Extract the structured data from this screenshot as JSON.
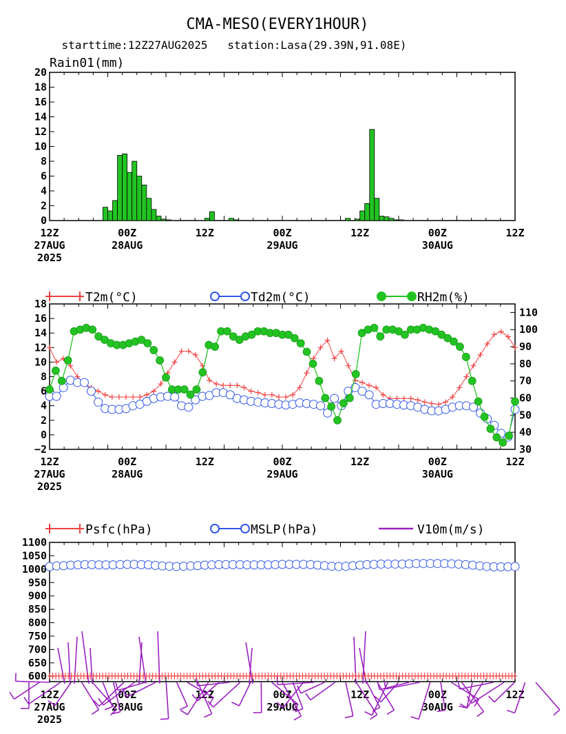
{
  "header": {
    "title": "CMA-MESO(EVERY1HOUR)",
    "subtitle": "starttime:12Z27AUG2025   station:Lasa(29.39N,91.08E)"
  },
  "x_axis": {
    "ticks": [
      {
        "l1": "12Z",
        "l2": "27AUG",
        "l3": "2025"
      },
      {
        "l1": "00Z",
        "l2": "28AUG",
        "l3": ""
      },
      {
        "l1": "12Z",
        "l2": "",
        "l3": ""
      },
      {
        "l1": "00Z",
        "l2": "29AUG",
        "l3": ""
      },
      {
        "l1": "12Z",
        "l2": "",
        "l3": ""
      },
      {
        "l1": "00Z",
        "l2": "30AUG",
        "l3": ""
      },
      {
        "l1": "12Z",
        "l2": "",
        "l3": ""
      }
    ]
  },
  "colors": {
    "rain": "#22c322",
    "t2m": "#f04040",
    "td2m": "#2f55e6",
    "rh2m": "#22c322",
    "psfc": "#f04040",
    "mslp": "#2f55e6",
    "wind": "#9b1fbf"
  },
  "chart_data": [
    {
      "type": "bar",
      "title": "Rain01(mm)",
      "x_unit": "hours since 12Z27AUG2025",
      "ylim": [
        0,
        20
      ],
      "yticks": [
        0,
        2,
        4,
        6,
        8,
        10,
        12,
        14,
        16,
        18,
        20
      ],
      "values": [
        0,
        0,
        0,
        0,
        0,
        0,
        0,
        0,
        0,
        0,
        0,
        1.8,
        1.3,
        2.7,
        8.8,
        9.0,
        6.5,
        8.0,
        6.0,
        4.8,
        3.0,
        1.5,
        0.6,
        0.2,
        0.1,
        0,
        0,
        0,
        0,
        0,
        0,
        0,
        0.3,
        1.2,
        0,
        0,
        0,
        0.3,
        0.1,
        0,
        0,
        0,
        0,
        0,
        0,
        0,
        0,
        0,
        0,
        0,
        0,
        0,
        0,
        0,
        0,
        0,
        0,
        0,
        0,
        0,
        0,
        0.3,
        0,
        0.2,
        1.3,
        2.3,
        12.3,
        3.0,
        0.6,
        0.5,
        0.3,
        0.1,
        0.1,
        0,
        0,
        0,
        0,
        0,
        0,
        0,
        0,
        0,
        0,
        0,
        0,
        0,
        0,
        0,
        0,
        0,
        0,
        0,
        0,
        0,
        0,
        0,
        0
      ]
    },
    {
      "type": "line",
      "legend": [
        "T2m(°C)",
        "Td2m(°C)",
        "RH2m(%)"
      ],
      "ylim_left": [
        -2,
        18
      ],
      "yticks_left": [
        -2,
        0,
        2,
        4,
        6,
        8,
        10,
        12,
        14,
        16,
        18
      ],
      "ylim_right": [
        30,
        115
      ],
      "yticks_right": [
        30,
        40,
        50,
        60,
        70,
        80,
        90,
        100,
        110
      ],
      "series": [
        {
          "name": "T2m(°C)",
          "axis": "left",
          "values": [
            12.0,
            10.0,
            10.5,
            9.5,
            8.0,
            7.0,
            6.5,
            6.0,
            5.5,
            5.2,
            5.2,
            5.2,
            5.2,
            5.2,
            5.5,
            6.0,
            7.0,
            8.5,
            10.0,
            11.5,
            11.5,
            11.0,
            9.5,
            7.5,
            7.0,
            6.8,
            6.8,
            6.8,
            6.5,
            6.0,
            5.8,
            5.5,
            5.5,
            5.2,
            5.2,
            5.5,
            6.5,
            8.5,
            10.5,
            12.0,
            13.0,
            10.5,
            11.5,
            9.5,
            7.5,
            7.2,
            6.8,
            6.5,
            5.5,
            5.0,
            5.0,
            5.0,
            5.0,
            4.8,
            4.5,
            4.3,
            4.2,
            4.5,
            5.2,
            6.5,
            8.0,
            9.5,
            11.0,
            12.5,
            13.8,
            14.2,
            13.5,
            12.0
          ]
        },
        {
          "name": "Td2m(°C)",
          "axis": "left",
          "values": [
            5.3,
            5.3,
            6.5,
            7.5,
            7.2,
            7.2,
            6.0,
            4.5,
            3.6,
            3.5,
            3.5,
            3.6,
            4.0,
            4.2,
            4.6,
            5.0,
            5.2,
            5.3,
            5.2,
            4.0,
            3.8,
            4.8,
            5.3,
            5.4,
            5.8,
            5.8,
            5.5,
            5.0,
            4.8,
            4.6,
            4.5,
            4.4,
            4.3,
            4.2,
            4.1,
            4.2,
            4.4,
            4.3,
            4.2,
            4.0,
            3.0,
            5.0,
            4.0,
            6.0,
            6.5,
            6.0,
            5.5,
            4.2,
            4.3,
            4.3,
            4.2,
            4.1,
            4.0,
            3.8,
            3.5,
            3.3,
            3.3,
            3.5,
            3.8,
            4.0,
            4.0,
            3.8,
            3.0,
            2.2,
            1.3,
            0.2,
            -0.3,
            3.5
          ]
        },
        {
          "name": "RH2m(%)",
          "axis": "right",
          "values": [
            65,
            76,
            70,
            82,
            99,
            100,
            101,
            100,
            96,
            94,
            92,
            91,
            91,
            92,
            93,
            94,
            92,
            88,
            82,
            72,
            65,
            65,
            65,
            62,
            65,
            75,
            91,
            90,
            99,
            99,
            96,
            94,
            96,
            97,
            99,
            99,
            98,
            98,
            97,
            97,
            95,
            92,
            87,
            80,
            70,
            60,
            55,
            47,
            57,
            60,
            74,
            98,
            100,
            101,
            96,
            100,
            100,
            99,
            97,
            100,
            100,
            101,
            100,
            99,
            97,
            95,
            93,
            90,
            84,
            70,
            58,
            49,
            42,
            37,
            34,
            38,
            58
          ]
        }
      ]
    },
    {
      "type": "line",
      "legend": [
        "Psfc(hPa)",
        "MSLP(hPa)",
        "V10m(m/s)"
      ],
      "ylim": [
        580,
        1100
      ],
      "yticks": [
        600,
        650,
        700,
        750,
        800,
        850,
        900,
        950,
        1000,
        1050,
        1100
      ],
      "series": [
        {
          "name": "Psfc(hPa)",
          "values": [
            601,
            601,
            601,
            601,
            601,
            601,
            601,
            601,
            601,
            601,
            601,
            601,
            601,
            601,
            601,
            601,
            601,
            601,
            601,
            601,
            601,
            601,
            601,
            601,
            601,
            601,
            601,
            601,
            601,
            601,
            601,
            601,
            601,
            601,
            601,
            601,
            601,
            601,
            601,
            601,
            601,
            601,
            601,
            601,
            601,
            601,
            601,
            601,
            601,
            601,
            601,
            601,
            601,
            601,
            601,
            601,
            601,
            601,
            601,
            601,
            601,
            601,
            601,
            601,
            601,
            601,
            601,
            601,
            601,
            601,
            601,
            601,
            601,
            601,
            601,
            601,
            601,
            601,
            601,
            601,
            601,
            601,
            601,
            601,
            601,
            601,
            601,
            601,
            601,
            601,
            601,
            601,
            601,
            601,
            601,
            601,
            601,
            601,
            601,
            601,
            601,
            601,
            601,
            601,
            601,
            601,
            601,
            601,
            601,
            601,
            601,
            601,
            601,
            601,
            601,
            601,
            601,
            601,
            601,
            601,
            601,
            601,
            601,
            601,
            601,
            601,
            601,
            601,
            601,
            601,
            601,
            601,
            601,
            601,
            601,
            601,
            601,
            601,
            601,
            601,
            601,
            601,
            601,
            601,
            601,
            601,
            601,
            601,
            601,
            601
          ]
        },
        {
          "name": "MSLP(hPa)",
          "values": [
            1010,
            1012,
            1013,
            1015,
            1016,
            1017,
            1017,
            1016,
            1016,
            1016,
            1017,
            1018,
            1018,
            1017,
            1016,
            1014,
            1012,
            1011,
            1010,
            1011,
            1012,
            1013,
            1015,
            1016,
            1017,
            1017,
            1017,
            1017,
            1016,
            1016,
            1016,
            1016,
            1017,
            1018,
            1018,
            1018,
            1018,
            1017,
            1015,
            1013,
            1011,
            1010,
            1011,
            1013,
            1015,
            1017,
            1018,
            1019,
            1019,
            1019,
            1019,
            1020,
            1021,
            1021,
            1021,
            1021,
            1021,
            1020,
            1019,
            1017,
            1015,
            1012,
            1010,
            1009,
            1009,
            1009,
            1010
          ]
        }
      ]
    }
  ]
}
